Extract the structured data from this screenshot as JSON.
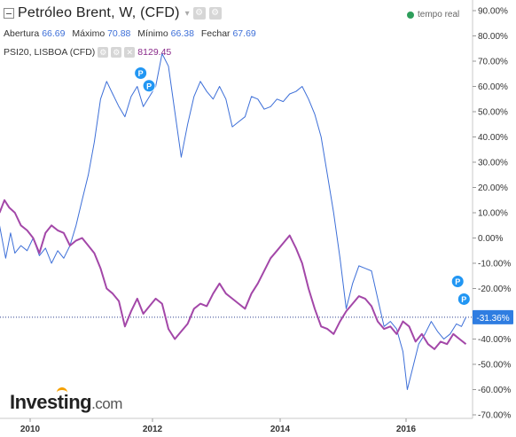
{
  "header": {
    "title": "Petróleo Brent, W, (CFD)",
    "caret": "▾",
    "ohlc": [
      {
        "label": "Abertura",
        "value": "66.69"
      },
      {
        "label": "Máximo",
        "value": "70.88"
      },
      {
        "label": "Mínimo",
        "value": "66.38"
      },
      {
        "label": "Fechar",
        "value": "67.69"
      }
    ],
    "compare": {
      "label": "PSI20, LISBOA (CFD)",
      "value": "8129.45"
    },
    "realtime": "tempo real"
  },
  "logo": {
    "main": "Investing",
    "suffix": ".com"
  },
  "colors": {
    "brent": "#3d6fd8",
    "psi20": "#a347a8",
    "marker": "#2196f3",
    "current": "#2b3f8c"
  },
  "chart_data": {
    "type": "line",
    "y_unit": "%",
    "ylim": [
      -70,
      90
    ],
    "y_ticks": [
      "90.00%",
      "80.00%",
      "70.00%",
      "60.00%",
      "50.00%",
      "40.00%",
      "30.00%",
      "20.00%",
      "10.00%",
      "0.00%",
      "-10.00%",
      "-20.00%",
      "-30.00%",
      "-40.00%",
      "-50.00%",
      "-60.00%",
      "-70.00%"
    ],
    "x_ticks": [
      "2010",
      "2012",
      "2014",
      "2016"
    ],
    "current_label": "-31.36%",
    "markers": [
      "P",
      "P",
      "P",
      "P"
    ],
    "series": [
      {
        "color": "#3d6fd8",
        "values": [
          [
            2009.5,
            5
          ],
          [
            2009.6,
            -8
          ],
          [
            2009.68,
            2
          ],
          [
            2009.75,
            -6
          ],
          [
            2009.85,
            -3
          ],
          [
            2009.95,
            -5
          ],
          [
            2010.05,
            0
          ],
          [
            2010.15,
            -7
          ],
          [
            2010.25,
            -4
          ],
          [
            2010.35,
            -10
          ],
          [
            2010.45,
            -5
          ],
          [
            2010.55,
            -8
          ],
          [
            2010.65,
            -3
          ],
          [
            2010.75,
            5
          ],
          [
            2010.85,
            15
          ],
          [
            2010.95,
            25
          ],
          [
            2011.05,
            38
          ],
          [
            2011.15,
            55
          ],
          [
            2011.25,
            62
          ],
          [
            2011.35,
            57
          ],
          [
            2011.45,
            52
          ],
          [
            2011.55,
            48
          ],
          [
            2011.65,
            56
          ],
          [
            2011.75,
            60
          ],
          [
            2011.85,
            52
          ],
          [
            2011.95,
            56
          ],
          [
            2012.05,
            60
          ],
          [
            2012.15,
            73
          ],
          [
            2012.25,
            68
          ],
          [
            2012.35,
            50
          ],
          [
            2012.45,
            32
          ],
          [
            2012.55,
            45
          ],
          [
            2012.65,
            56
          ],
          [
            2012.75,
            62
          ],
          [
            2012.85,
            58
          ],
          [
            2012.95,
            55
          ],
          [
            2013.05,
            60
          ],
          [
            2013.15,
            55
          ],
          [
            2013.25,
            44
          ],
          [
            2013.35,
            46
          ],
          [
            2013.45,
            48
          ],
          [
            2013.55,
            56
          ],
          [
            2013.65,
            55
          ],
          [
            2013.75,
            51
          ],
          [
            2013.85,
            52
          ],
          [
            2013.95,
            55
          ],
          [
            2014.05,
            54
          ],
          [
            2014.15,
            57
          ],
          [
            2014.25,
            58
          ],
          [
            2014.35,
            60
          ],
          [
            2014.45,
            55
          ],
          [
            2014.55,
            49
          ],
          [
            2014.65,
            40
          ],
          [
            2014.75,
            25
          ],
          [
            2014.85,
            10
          ],
          [
            2014.95,
            -8
          ],
          [
            2015.05,
            -28
          ],
          [
            2015.15,
            -18
          ],
          [
            2015.25,
            -11
          ],
          [
            2015.35,
            -12
          ],
          [
            2015.45,
            -13
          ],
          [
            2015.55,
            -24
          ],
          [
            2015.65,
            -35
          ],
          [
            2015.75,
            -33
          ],
          [
            2015.85,
            -36
          ],
          [
            2015.95,
            -45
          ],
          [
            2016.02,
            -60
          ],
          [
            2016.1,
            -52
          ],
          [
            2016.2,
            -42
          ],
          [
            2016.3,
            -38
          ],
          [
            2016.4,
            -33
          ],
          [
            2016.5,
            -37
          ],
          [
            2016.6,
            -40
          ],
          [
            2016.7,
            -38
          ],
          [
            2016.8,
            -34
          ],
          [
            2016.88,
            -35
          ],
          [
            2016.95,
            -31.36
          ]
        ]
      },
      {
        "color": "#a347a8",
        "values": [
          [
            2009.5,
            10
          ],
          [
            2009.58,
            15
          ],
          [
            2009.66,
            12
          ],
          [
            2009.75,
            10
          ],
          [
            2009.85,
            5
          ],
          [
            2009.95,
            3
          ],
          [
            2010.05,
            0
          ],
          [
            2010.15,
            -6
          ],
          [
            2010.25,
            2
          ],
          [
            2010.35,
            5
          ],
          [
            2010.45,
            3
          ],
          [
            2010.55,
            2
          ],
          [
            2010.65,
            -3
          ],
          [
            2010.75,
            -1
          ],
          [
            2010.85,
            0
          ],
          [
            2010.95,
            -3
          ],
          [
            2011.05,
            -6
          ],
          [
            2011.15,
            -12
          ],
          [
            2011.25,
            -20
          ],
          [
            2011.35,
            -22
          ],
          [
            2011.45,
            -25
          ],
          [
            2011.55,
            -35
          ],
          [
            2011.65,
            -29
          ],
          [
            2011.75,
            -24
          ],
          [
            2011.85,
            -30
          ],
          [
            2011.95,
            -27
          ],
          [
            2012.05,
            -24
          ],
          [
            2012.15,
            -26
          ],
          [
            2012.25,
            -36
          ],
          [
            2012.35,
            -40
          ],
          [
            2012.45,
            -37
          ],
          [
            2012.55,
            -34
          ],
          [
            2012.65,
            -28
          ],
          [
            2012.75,
            -26
          ],
          [
            2012.85,
            -27
          ],
          [
            2012.95,
            -22
          ],
          [
            2013.05,
            -18
          ],
          [
            2013.15,
            -22
          ],
          [
            2013.25,
            -24
          ],
          [
            2013.35,
            -26
          ],
          [
            2013.45,
            -28
          ],
          [
            2013.55,
            -22
          ],
          [
            2013.65,
            -18
          ],
          [
            2013.75,
            -13
          ],
          [
            2013.85,
            -8
          ],
          [
            2013.95,
            -5
          ],
          [
            2014.05,
            -2
          ],
          [
            2014.15,
            1
          ],
          [
            2014.25,
            -4
          ],
          [
            2014.35,
            -10
          ],
          [
            2014.45,
            -20
          ],
          [
            2014.55,
            -28
          ],
          [
            2014.65,
            -35
          ],
          [
            2014.75,
            -36
          ],
          [
            2014.85,
            -38
          ],
          [
            2014.95,
            -33
          ],
          [
            2015.05,
            -29
          ],
          [
            2015.15,
            -26
          ],
          [
            2015.25,
            -23
          ],
          [
            2015.35,
            -24
          ],
          [
            2015.45,
            -27
          ],
          [
            2015.55,
            -33
          ],
          [
            2015.65,
            -36
          ],
          [
            2015.75,
            -35
          ],
          [
            2015.85,
            -38
          ],
          [
            2015.95,
            -33
          ],
          [
            2016.05,
            -35
          ],
          [
            2016.15,
            -41
          ],
          [
            2016.25,
            -38
          ],
          [
            2016.35,
            -42
          ],
          [
            2016.45,
            -44
          ],
          [
            2016.55,
            -41
          ],
          [
            2016.65,
            -42
          ],
          [
            2016.75,
            -38
          ],
          [
            2016.85,
            -40
          ],
          [
            2016.95,
            -42
          ]
        ]
      }
    ]
  }
}
